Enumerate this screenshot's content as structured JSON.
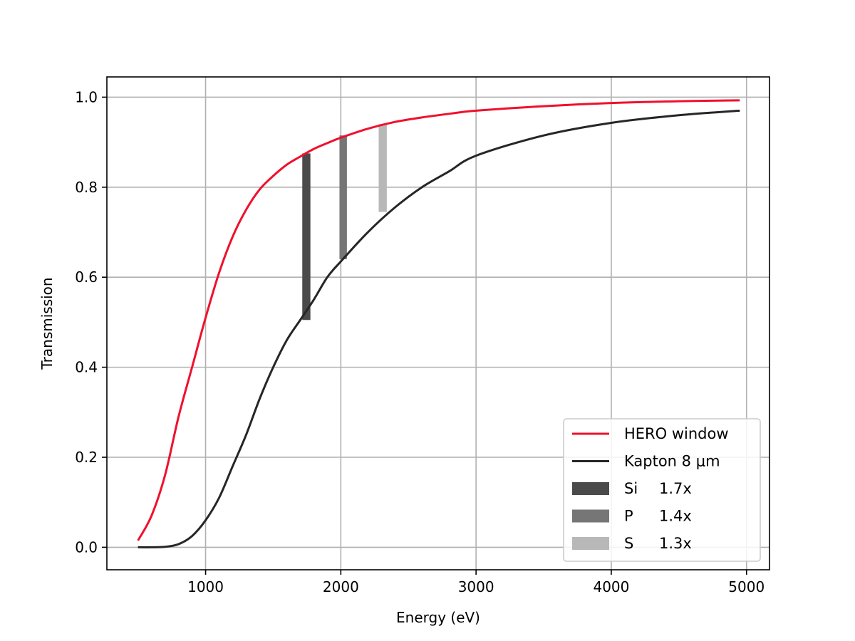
{
  "chart_data": {
    "type": "line",
    "title": "",
    "xlabel": "Energy (eV)",
    "ylabel": "Transmission",
    "xlim": [
      270,
      5170
    ],
    "ylim": [
      -0.05,
      1.045
    ],
    "grid": true,
    "xticks": [
      1000,
      2000,
      3000,
      4000,
      5000
    ],
    "xtick_labels": [
      "1000",
      "2000",
      "3000",
      "4000",
      "5000"
    ],
    "yticks": [
      0.0,
      0.2,
      0.4,
      0.6,
      0.8,
      1.0
    ],
    "ytick_labels": [
      "0.0",
      "0.2",
      "0.4",
      "0.6",
      "0.8",
      "1.0"
    ],
    "series": [
      {
        "name": "HERO window",
        "color": "#f0102c",
        "x": [
          500,
          600,
          700,
          800,
          900,
          1000,
          1100,
          1200,
          1300,
          1400,
          1500,
          1600,
          1700,
          1800,
          1900,
          2000,
          2200,
          2400,
          2600,
          2800,
          3000,
          3500,
          4000,
          4500,
          4950
        ],
        "y": [
          0.015,
          0.07,
          0.16,
          0.29,
          0.4,
          0.51,
          0.61,
          0.69,
          0.75,
          0.795,
          0.825,
          0.85,
          0.868,
          0.885,
          0.898,
          0.91,
          0.93,
          0.945,
          0.955,
          0.963,
          0.97,
          0.98,
          0.987,
          0.991,
          0.993
        ]
      },
      {
        "name": "Kapton 8 μm",
        "color": "#262626",
        "x": [
          500,
          600,
          700,
          800,
          900,
          1000,
          1100,
          1200,
          1300,
          1400,
          1500,
          1600,
          1700,
          1800,
          1900,
          2000,
          2200,
          2400,
          2600,
          2800,
          3000,
          3500,
          4000,
          4500,
          4950
        ],
        "y": [
          0.0,
          0.0,
          0.001,
          0.007,
          0.025,
          0.06,
          0.11,
          0.18,
          0.25,
          0.33,
          0.4,
          0.46,
          0.505,
          0.55,
          0.6,
          0.635,
          0.7,
          0.755,
          0.8,
          0.835,
          0.87,
          0.915,
          0.943,
          0.96,
          0.97
        ]
      }
    ],
    "bands": [
      {
        "name": "Si",
        "factor": "1.7x",
        "x": [
          1715,
          1775
        ],
        "y_low": 0.505,
        "y_high": 0.875,
        "color": "#4a4a4a"
      },
      {
        "name": "P",
        "factor": "1.4x",
        "x": [
          1990,
          2045
        ],
        "y_low": 0.64,
        "y_high": 0.915,
        "color": "#767676"
      },
      {
        "name": "S",
        "factor": "1.3x",
        "x": [
          2280,
          2340
        ],
        "y_low": 0.745,
        "y_high": 0.94,
        "color": "#b8b8b8"
      }
    ],
    "legend": {
      "position": "lower-right",
      "entries": [
        {
          "label": "HERO window",
          "kind": "line",
          "color": "#f0102c"
        },
        {
          "label": "Kapton 8 μm",
          "kind": "line",
          "color": "#262626"
        },
        {
          "label": "Si",
          "factor": "1.7x",
          "kind": "patch",
          "color": "#4a4a4a"
        },
        {
          "label": "P",
          "factor": "1.4x",
          "kind": "patch",
          "color": "#767676"
        },
        {
          "label": "S",
          "factor": "1.3x",
          "kind": "patch",
          "color": "#b8b8b8"
        }
      ]
    }
  }
}
